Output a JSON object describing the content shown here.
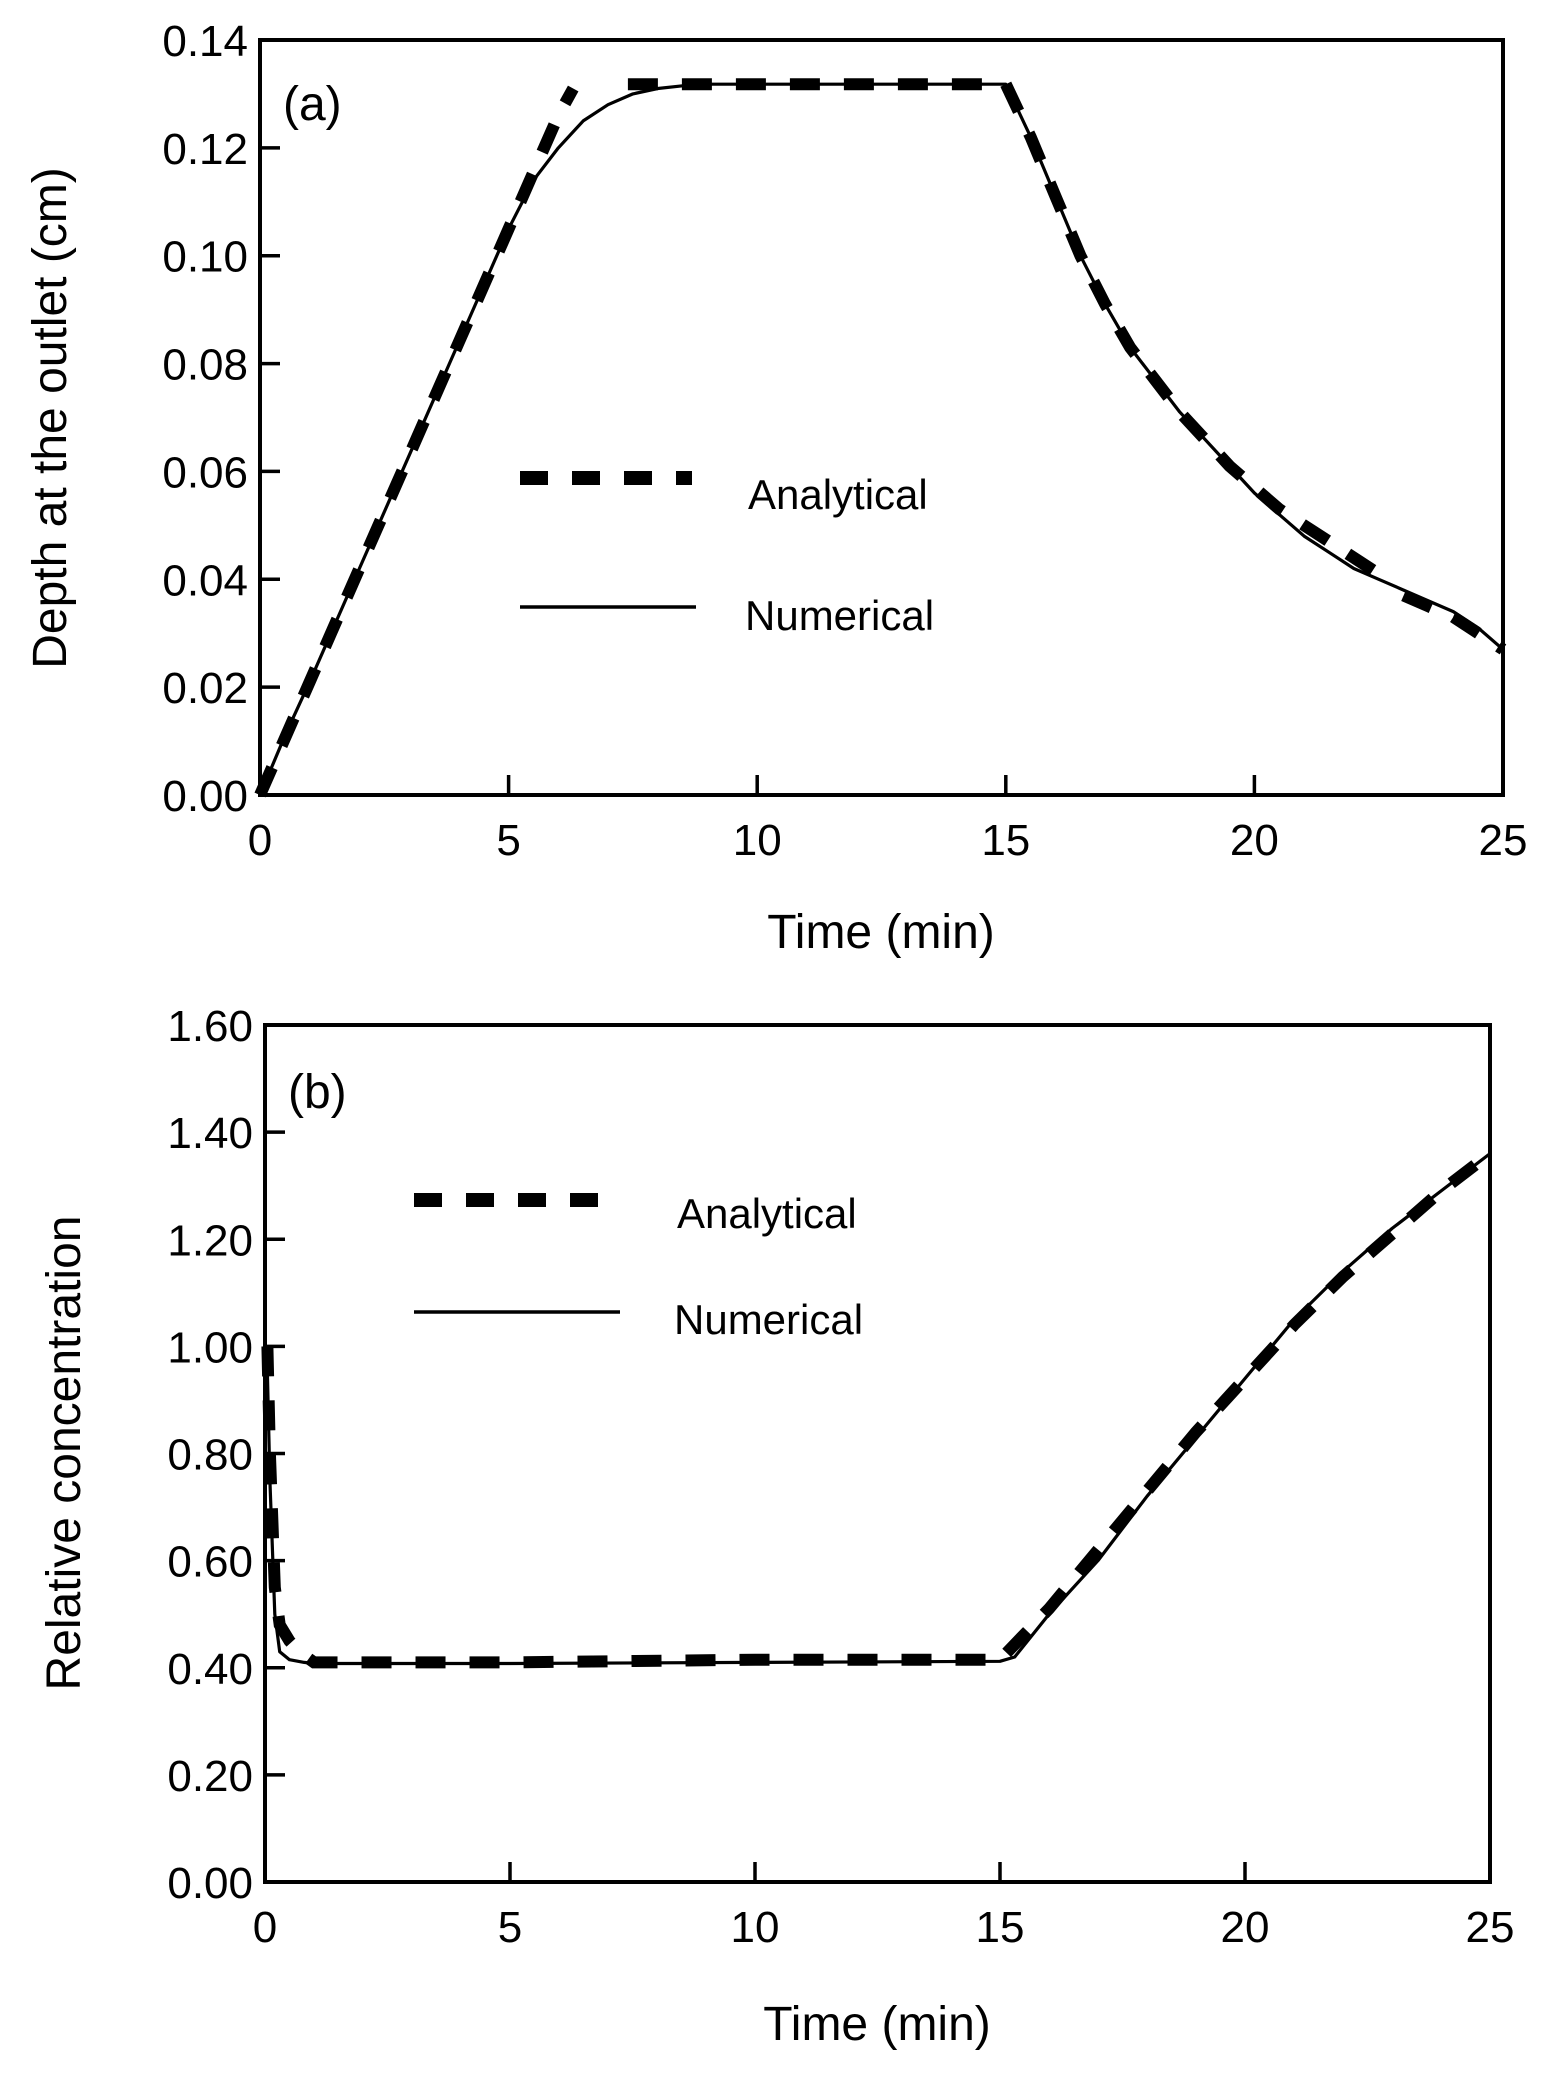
{
  "chart_data": [
    {
      "type": "line",
      "panel_label": "(a)",
      "xlabel": "Time (min)",
      "ylabel": "Depth at the outlet (cm)",
      "xlim": [
        0,
        25
      ],
      "ylim": [
        0,
        0.14
      ],
      "xticks": [
        0,
        5,
        10,
        15,
        20,
        25
      ],
      "xtick_labels": [
        "0",
        "5",
        "10",
        "15",
        "20",
        "25"
      ],
      "yticks": [
        0,
        0.02,
        0.04,
        0.06,
        0.08,
        0.1,
        0.12,
        0.14
      ],
      "ytick_labels": [
        "0.00",
        "0.02",
        "0.04",
        "0.06",
        "0.08",
        "0.10",
        "0.12",
        "0.14"
      ],
      "grid": false,
      "legend_position": "center-left",
      "series": [
        {
          "name": "Analytical",
          "style": "dashed",
          "segments": [
            {
              "x": [
                0,
                1,
                2,
                3,
                4,
                5,
                6,
                6.3
              ],
              "y": [
                0,
                0.021,
                0.042,
                0.063,
                0.084,
                0.105,
                0.126,
                0.131
              ]
            },
            {
              "x": [
                7.4,
                8,
                10,
                12,
                14,
                15
              ],
              "y": [
                0.1318,
                0.1318,
                0.1318,
                0.1318,
                0.1318,
                0.1318
              ]
            },
            {
              "x": [
                15,
                15.5,
                16,
                16.5,
                17,
                17.5,
                18,
                18.5,
                19,
                19.5,
                20,
                20.5,
                21,
                21.5,
                22,
                22.5
              ],
              "y": [
                0.1318,
                0.122,
                0.111,
                0.1,
                0.091,
                0.083,
                0.077,
                0.071,
                0.066,
                0.061,
                0.057,
                0.053,
                0.05,
                0.047,
                0.044,
                0.041
              ]
            },
            {
              "x": [
                23,
                23.5,
                24,
                24.5,
                25
              ],
              "y": [
                0.037,
                0.035,
                0.033,
                0.03,
                0.027
              ]
            }
          ]
        },
        {
          "name": "Numerical",
          "style": "solid",
          "x": [
            0,
            0.5,
            1,
            2,
            3,
            4,
            5,
            5.5,
            6,
            6.5,
            7,
            7.5,
            8,
            8.5,
            9,
            10,
            12,
            14,
            15,
            15.5,
            16,
            16.5,
            17,
            17.5,
            18,
            18.5,
            19,
            19.5,
            20,
            20.5,
            21,
            21.5,
            22,
            22.5,
            23,
            23.5,
            24,
            24.5,
            25
          ],
          "y": [
            0,
            0.011,
            0.021,
            0.042,
            0.063,
            0.084,
            0.105,
            0.114,
            0.12,
            0.125,
            0.128,
            0.13,
            0.131,
            0.1315,
            0.1318,
            0.1318,
            0.1318,
            0.1318,
            0.1318,
            0.122,
            0.111,
            0.1,
            0.091,
            0.083,
            0.077,
            0.071,
            0.066,
            0.061,
            0.056,
            0.052,
            0.048,
            0.045,
            0.042,
            0.04,
            0.038,
            0.036,
            0.034,
            0.031,
            0.027
          ]
        }
      ]
    },
    {
      "type": "line",
      "panel_label": "(b)",
      "xlabel": "Time (min)",
      "ylabel": "Relative concentration",
      "xlim": [
        0,
        25
      ],
      "ylim": [
        0,
        1.6
      ],
      "xticks": [
        0,
        5,
        10,
        15,
        20,
        25
      ],
      "xtick_labels": [
        "0",
        "5",
        "10",
        "15",
        "20",
        "25"
      ],
      "yticks": [
        0,
        0.2,
        0.4,
        0.6,
        0.8,
        1.0,
        1.2,
        1.4,
        1.6
      ],
      "ytick_labels": [
        "0.00",
        "0.20",
        "0.40",
        "0.60",
        "0.80",
        "1.00",
        "1.20",
        "1.40",
        "1.60"
      ],
      "grid": false,
      "legend_position": "upper-left",
      "series": [
        {
          "name": "Analytical",
          "style": "dashed",
          "x": [
            0.05,
            0.1,
            0.2,
            0.3,
            0.5,
            0.7,
            1,
            2,
            5,
            10,
            15,
            16,
            17,
            18,
            19,
            20,
            21,
            22,
            23,
            24,
            25
          ],
          "y": [
            1.0,
            0.8,
            0.55,
            0.48,
            0.45,
            0.43,
            0.41,
            0.41,
            0.41,
            0.415,
            0.415,
            0.51,
            0.62,
            0.73,
            0.84,
            0.94,
            1.04,
            1.13,
            1.21,
            1.29,
            1.36
          ]
        },
        {
          "name": "Numerical",
          "style": "solid",
          "x": [
            0,
            0.05,
            0.1,
            0.2,
            0.3,
            0.5,
            0.8,
            1,
            2,
            5,
            10,
            15,
            15.3,
            16,
            17,
            18,
            19,
            20,
            21,
            22,
            23,
            24,
            25
          ],
          "y": [
            1.0,
            0.95,
            0.75,
            0.5,
            0.43,
            0.415,
            0.41,
            0.408,
            0.408,
            0.408,
            0.41,
            0.412,
            0.42,
            0.5,
            0.6,
            0.72,
            0.83,
            0.94,
            1.05,
            1.14,
            1.22,
            1.29,
            1.36
          ]
        }
      ]
    }
  ]
}
